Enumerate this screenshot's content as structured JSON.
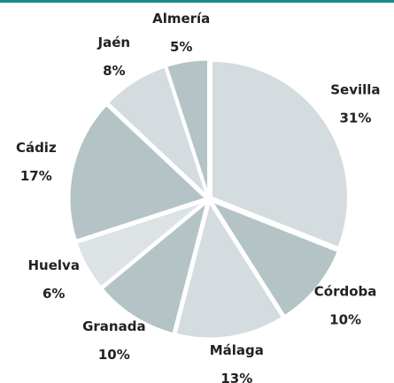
{
  "chart_data": {
    "type": "pie",
    "categories": [
      "Sevilla",
      "Córdoba",
      "Málaga",
      "Granada",
      "Huelva",
      "Cádiz",
      "Jaén",
      "Almería"
    ],
    "values": [
      31,
      10,
      13,
      10,
      6,
      17,
      8,
      5
    ],
    "value_labels": [
      "31%",
      "10%",
      "13%",
      "10%",
      "6%",
      "17%",
      "8%",
      "5%"
    ],
    "colors": [
      "#d5dcdf",
      "#b4c3c5",
      "#d5dcdf",
      "#b4c3c5",
      "#dde3e5",
      "#b4c3c5",
      "#d5dcdf",
      "#b4c3c5"
    ]
  }
}
